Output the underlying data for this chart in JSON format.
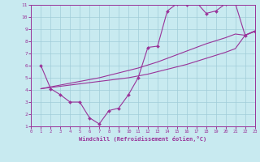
{
  "xlabel": "Windchill (Refroidissement éolien,°C)",
  "xlim": [
    0,
    23
  ],
  "ylim": [
    1,
    11
  ],
  "xticks": [
    0,
    1,
    2,
    3,
    4,
    5,
    6,
    7,
    8,
    9,
    10,
    11,
    12,
    13,
    14,
    15,
    16,
    17,
    18,
    19,
    20,
    21,
    22,
    23
  ],
  "yticks": [
    1,
    2,
    3,
    4,
    5,
    6,
    7,
    8,
    9,
    10,
    11
  ],
  "bg_color": "#c8eaf0",
  "line_color": "#993399",
  "grid_color": "#a0ccd8",
  "line1_x": [
    1,
    2,
    3,
    4,
    5,
    6,
    7,
    8,
    9,
    10,
    11,
    12,
    13,
    14,
    15,
    16,
    17,
    18,
    19,
    20,
    21,
    22,
    23
  ],
  "line1_y": [
    6.0,
    4.1,
    3.6,
    3.0,
    3.0,
    1.7,
    1.2,
    2.3,
    2.5,
    3.6,
    5.0,
    7.5,
    7.6,
    10.5,
    11.1,
    11.0,
    11.2,
    10.3,
    10.5,
    11.1,
    11.1,
    8.5,
    8.8
  ],
  "line2_x": [
    1,
    2,
    3,
    4,
    5,
    6,
    7,
    8,
    9,
    10,
    11,
    12,
    13,
    14,
    15,
    16,
    17,
    18,
    19,
    20,
    21,
    22,
    23
  ],
  "line2_y": [
    4.1,
    4.25,
    4.4,
    4.55,
    4.7,
    4.85,
    5.0,
    5.2,
    5.4,
    5.6,
    5.8,
    6.05,
    6.3,
    6.6,
    6.9,
    7.2,
    7.5,
    7.8,
    8.05,
    8.3,
    8.6,
    8.5,
    8.85
  ],
  "line3_x": [
    1,
    2,
    3,
    4,
    5,
    6,
    7,
    8,
    9,
    10,
    11,
    12,
    13,
    14,
    15,
    16,
    17,
    18,
    19,
    20,
    21,
    22,
    23
  ],
  "line3_y": [
    4.1,
    4.2,
    4.3,
    4.4,
    4.5,
    4.6,
    4.7,
    4.8,
    4.9,
    5.0,
    5.15,
    5.3,
    5.5,
    5.7,
    5.9,
    6.1,
    6.35,
    6.6,
    6.85,
    7.1,
    7.4,
    8.5,
    8.85
  ],
  "marker": "D",
  "markersize": 2.0,
  "linewidth": 0.8
}
